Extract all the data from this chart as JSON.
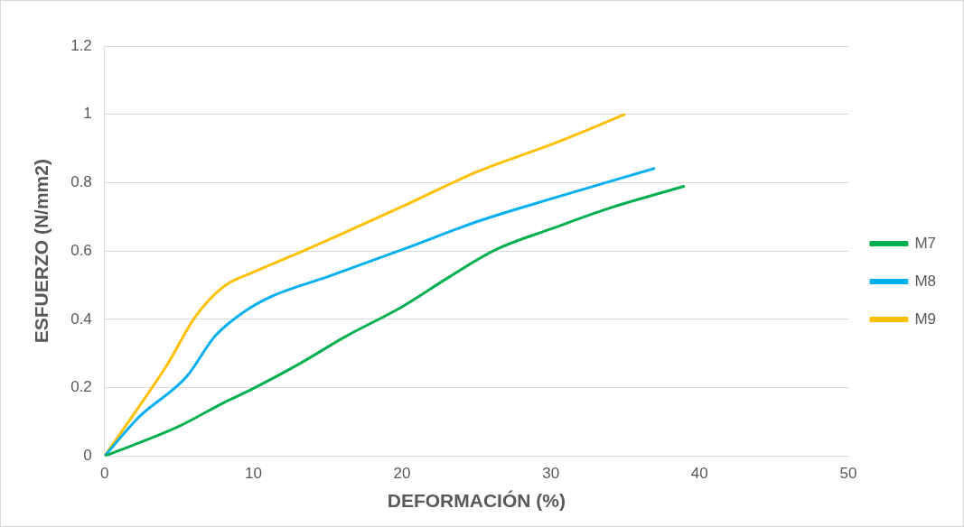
{
  "chart_data": {
    "type": "line",
    "xlabel": "DEFORMACIÓN (%)",
    "ylabel": "ESFUERZO (N/mm2)",
    "xlim": [
      0,
      50
    ],
    "xticks": [
      0,
      10,
      20,
      30,
      40,
      50
    ],
    "ylim": [
      0,
      1.2
    ],
    "yticks": [
      0,
      0.2,
      0.4,
      0.6,
      0.8,
      1,
      1.2
    ],
    "grid": "y",
    "legend": "right",
    "marker": "none",
    "series": [
      {
        "name": "M7",
        "color": "#00b050",
        "x": [
          0,
          4.9,
          8,
          10.1,
          13.1,
          16.2,
          20,
          23.2,
          26.3,
          30.1,
          33.9,
          39
        ],
        "values": [
          0,
          0.085,
          0.156,
          0.2,
          0.27,
          0.35,
          0.437,
          0.525,
          0.604,
          0.666,
          0.725,
          0.79
        ]
      },
      {
        "name": "M8",
        "color": "#00b0f0",
        "x": [
          0,
          2.3,
          5.5,
          7.4,
          9.3,
          11.2,
          15,
          20,
          25.1,
          30.1,
          37
        ],
        "values": [
          0,
          0.114,
          0.232,
          0.35,
          0.42,
          0.467,
          0.525,
          0.604,
          0.687,
          0.754,
          0.842
        ]
      },
      {
        "name": "M9",
        "color": "#ffc000",
        "x": [
          0,
          2.3,
          4.2,
          6.1,
          8,
          10.1,
          13.7,
          20,
          25.1,
          30.1,
          35
        ],
        "values": [
          0,
          0.144,
          0.267,
          0.408,
          0.496,
          0.54,
          0.607,
          0.73,
          0.833,
          0.913,
          1
        ]
      }
    ]
  }
}
